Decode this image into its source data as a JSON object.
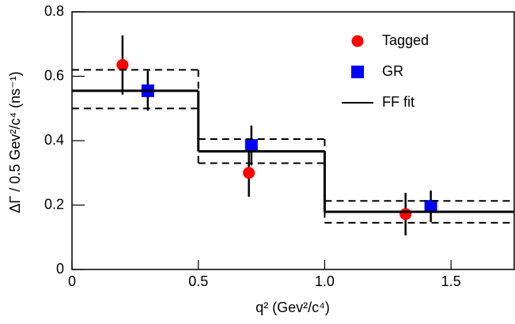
{
  "chart_data": {
    "type": "scatter",
    "xlabel": "q² (Gev²/c⁴)",
    "ylabel": "ΔΓ / 0.5 Gev²/c⁴ (ns⁻¹)",
    "xlim": [
      0,
      1.75
    ],
    "xticks": [
      0,
      0.5,
      {
        "value": 1,
        "label": "1.0"
      },
      1.5
    ],
    "ylim": [
      0,
      0.8
    ],
    "yticks": [
      0,
      0.2,
      0.4,
      0.6,
      0.8
    ],
    "legend": "upper right",
    "series": [
      {
        "name": "Tagged",
        "type": "points",
        "marker": "circle",
        "color": "#ff0000",
        "x": [
          0.2,
          0.7,
          1.32
        ],
        "values": [
          0.635,
          0.3,
          0.172
        ],
        "errors": [
          0.092,
          0.074,
          0.066
        ]
      },
      {
        "name": "GR",
        "type": "points",
        "marker": "square",
        "color": "#0000ff",
        "x": [
          0.3,
          0.71,
          1.42
        ],
        "values": [
          0.555,
          0.385,
          0.196
        ],
        "errors": [
          0.062,
          0.062,
          0.049
        ]
      },
      {
        "name": "FF fit",
        "type": "step",
        "color": "#000000",
        "bins": [
          0,
          0.5,
          1,
          1.75
        ],
        "values": [
          0.555,
          0.367,
          0.179
        ],
        "upper": [
          0.62,
          0.405,
          0.213
        ],
        "lower": [
          0.5,
          0.33,
          0.145
        ]
      }
    ]
  }
}
